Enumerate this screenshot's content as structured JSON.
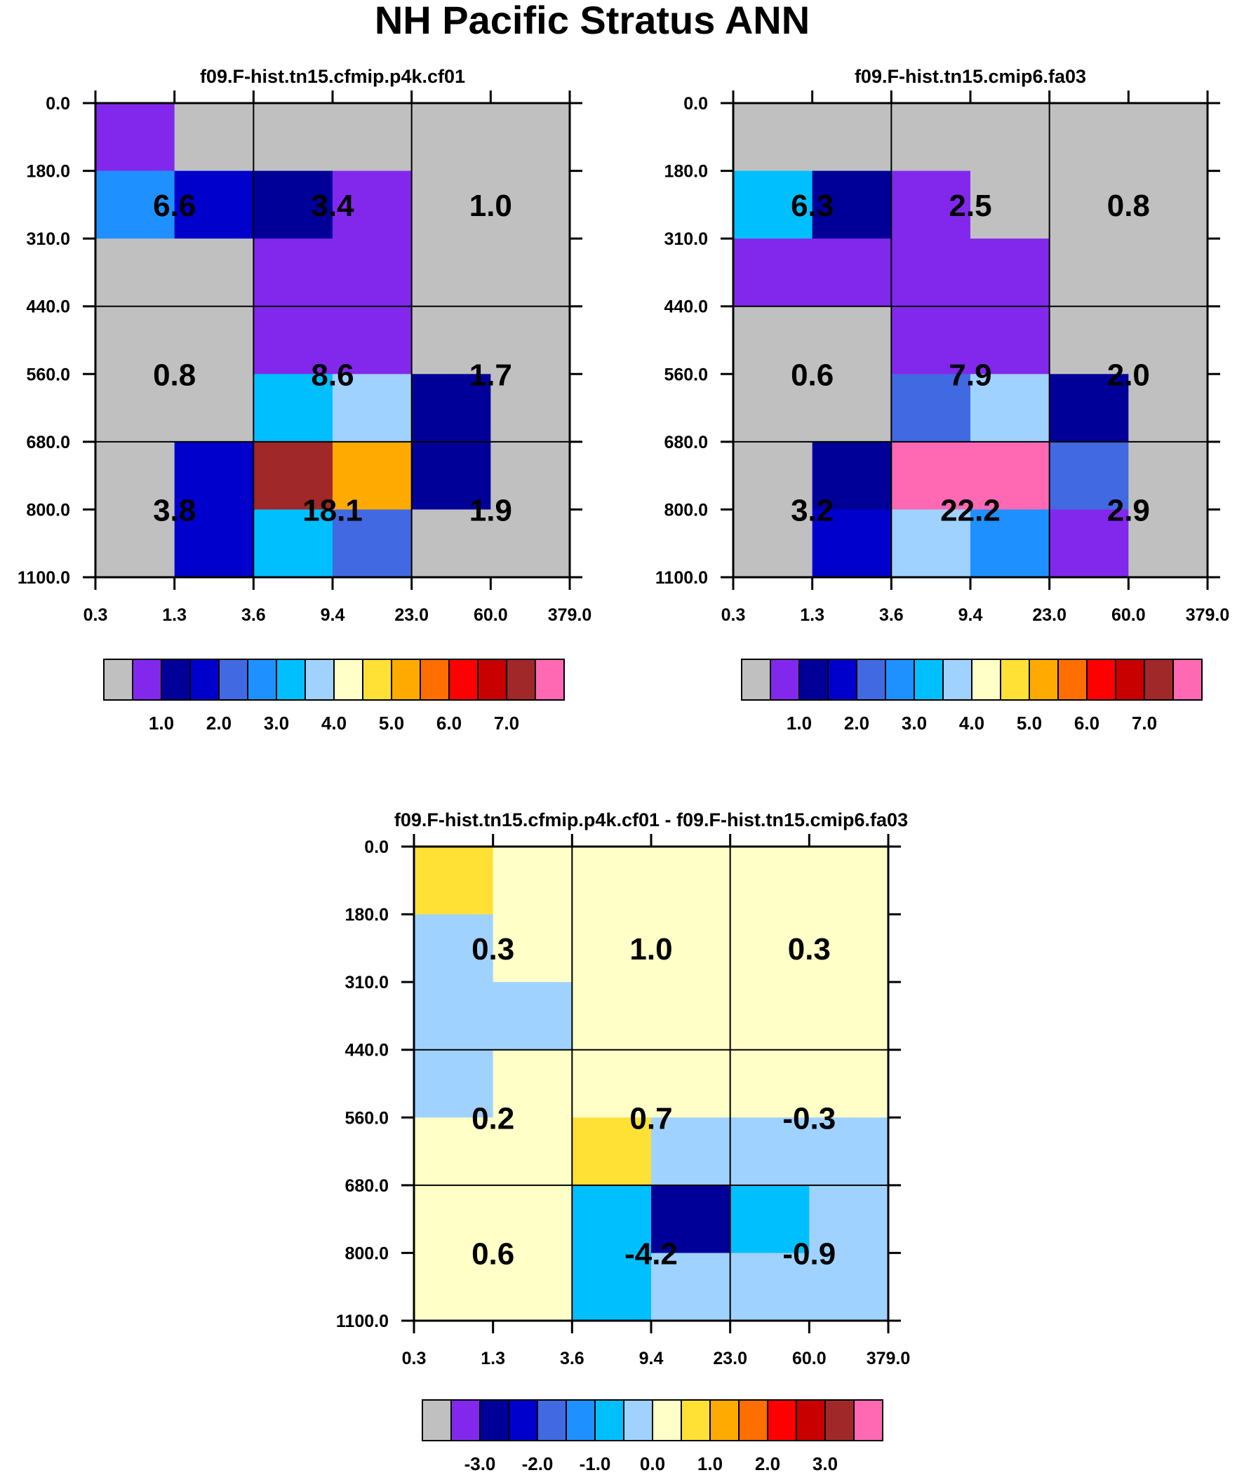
{
  "title": "NH Pacific Stratus ANN",
  "colormap": [
    "#c0c0c0",
    "#8228ed",
    "#000099",
    "#0000cc",
    "#4169e1",
    "#1e90ff",
    "#00bfff",
    "#a0d2ff",
    "#ffffc8",
    "#ffe135",
    "#ffaa00",
    "#ff6e00",
    "#ff0000",
    "#c80000",
    "#a02828",
    "#ff69b4"
  ],
  "chart_data": [
    {
      "type": "heatmap",
      "title": "f09.F-hist.tn15.cfmip.p4k.cf01",
      "x_ticks": [
        "0.3",
        "1.3",
        "3.6",
        "9.4",
        "23.0",
        "60.0",
        "379.0"
      ],
      "y_ticks": [
        "0.0",
        "180.0",
        "310.0",
        "440.0",
        "560.0",
        "680.0",
        "800.0",
        "1100.0"
      ],
      "cells": [
        [
          1,
          0,
          0,
          0,
          0,
          0
        ],
        [
          5,
          3,
          2,
          1,
          0,
          0
        ],
        [
          0,
          0,
          1,
          1,
          0,
          0
        ],
        [
          0,
          0,
          1,
          1,
          0,
          0
        ],
        [
          0,
          0,
          6,
          7,
          2,
          0
        ],
        [
          0,
          3,
          14,
          10,
          2,
          0
        ],
        [
          0,
          3,
          6,
          4,
          0,
          0
        ]
      ],
      "box_values": [
        [
          "6.6",
          "3.4",
          "1.0"
        ],
        [
          "0.8",
          "8.6",
          "1.7"
        ],
        [
          "3.8",
          "18.1",
          "1.9"
        ]
      ],
      "colorbar_labels": [
        "1.0",
        "2.0",
        "3.0",
        "4.0",
        "5.0",
        "6.0",
        "7.0"
      ]
    },
    {
      "type": "heatmap",
      "title": "f09.F-hist.tn15.cmip6.fa03",
      "x_ticks": [
        "0.3",
        "1.3",
        "3.6",
        "9.4",
        "23.0",
        "60.0",
        "379.0"
      ],
      "y_ticks": [
        "0.0",
        "180.0",
        "310.0",
        "440.0",
        "560.0",
        "680.0",
        "800.0",
        "1100.0"
      ],
      "cells": [
        [
          0,
          0,
          0,
          0,
          0,
          0
        ],
        [
          6,
          2,
          1,
          0,
          0,
          0
        ],
        [
          1,
          1,
          1,
          1,
          0,
          0
        ],
        [
          0,
          0,
          1,
          1,
          0,
          0
        ],
        [
          0,
          0,
          4,
          7,
          2,
          0
        ],
        [
          0,
          2,
          15,
          15,
          4,
          0
        ],
        [
          0,
          3,
          7,
          5,
          1,
          0
        ]
      ],
      "box_values": [
        [
          "6.3",
          "2.5",
          "0.8"
        ],
        [
          "0.6",
          "7.9",
          "2.0"
        ],
        [
          "3.2",
          "22.2",
          "2.9"
        ]
      ],
      "colorbar_labels": [
        "1.0",
        "2.0",
        "3.0",
        "4.0",
        "5.0",
        "6.0",
        "7.0"
      ]
    },
    {
      "type": "heatmap",
      "title": "f09.F-hist.tn15.cfmip.p4k.cf01 - f09.F-hist.tn15.cmip6.fa03",
      "x_ticks": [
        "0.3",
        "1.3",
        "3.6",
        "9.4",
        "23.0",
        "60.0",
        "379.0"
      ],
      "y_ticks": [
        "0.0",
        "180.0",
        "310.0",
        "440.0",
        "560.0",
        "680.0",
        "800.0",
        "1100.0"
      ],
      "cells": [
        [
          9,
          8,
          8,
          8,
          8,
          8
        ],
        [
          7,
          8,
          8,
          8,
          8,
          8
        ],
        [
          7,
          7,
          8,
          8,
          8,
          8
        ],
        [
          7,
          8,
          8,
          8,
          8,
          8
        ],
        [
          8,
          8,
          9,
          7,
          7,
          7
        ],
        [
          8,
          8,
          6,
          2,
          6,
          7
        ],
        [
          8,
          8,
          6,
          7,
          7,
          7
        ]
      ],
      "box_values": [
        [
          "0.3",
          "1.0",
          "0.3"
        ],
        [
          "0.2",
          "0.7",
          "-0.3"
        ],
        [
          "0.6",
          "-4.2",
          "-0.9"
        ]
      ],
      "colorbar_labels": [
        "-3.0",
        "-2.0",
        "-1.0",
        "0.0",
        "1.0",
        "2.0",
        "3.0"
      ]
    }
  ]
}
